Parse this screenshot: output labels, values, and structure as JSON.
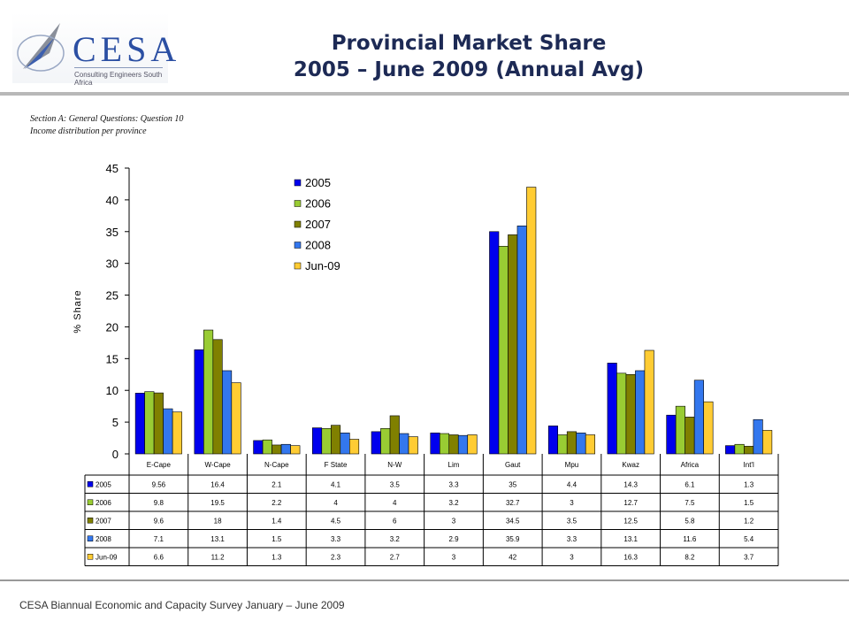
{
  "header": {
    "logo_text": "CESA",
    "logo_subtitle": "Consulting Engineers South Africa",
    "title_line1": "Provincial Market Share",
    "title_line2": "2005 – June 2009 (Annual Avg)"
  },
  "notes": {
    "line1": "Section A: General Questions: Question 10",
    "line2": "Income distribution per province"
  },
  "footer": "CESA Biannual Economic and Capacity Survey January – June 2009",
  "chart_data": {
    "type": "bar",
    "ylabel": "% Share",
    "ylim": [
      0,
      45
    ],
    "yticks": [
      0,
      5,
      10,
      15,
      20,
      25,
      30,
      35,
      40,
      45
    ],
    "legend_position": "top-center",
    "categories": [
      "E-Cape",
      "W-Cape",
      "N-Cape",
      "F State",
      "N-W",
      "Lim",
      "Gaut",
      "Mpu",
      "Kwaz",
      "Africa",
      "Int'l"
    ],
    "series": [
      {
        "name": "2005",
        "color": "#0000ee",
        "values": [
          9.56,
          16.4,
          2.1,
          4.1,
          3.5,
          3.3,
          35,
          4.4,
          14.3,
          6.1,
          1.3
        ]
      },
      {
        "name": "2006",
        "color": "#99cc33",
        "values": [
          9.8,
          19.5,
          2.2,
          4,
          4,
          3.2,
          32.7,
          3,
          12.7,
          7.5,
          1.5
        ]
      },
      {
        "name": "2007",
        "color": "#808000",
        "values": [
          9.6,
          18,
          1.4,
          4.5,
          6,
          3,
          34.5,
          3.5,
          12.5,
          5.8,
          1.2
        ]
      },
      {
        "name": "2008",
        "color": "#3377ee",
        "values": [
          7.1,
          13.1,
          1.5,
          3.3,
          3.2,
          2.9,
          35.9,
          3.3,
          13.1,
          11.6,
          5.4
        ]
      },
      {
        "name": "Jun-09",
        "color": "#ffcc33",
        "values": [
          6.6,
          11.2,
          1.3,
          2.3,
          2.7,
          3,
          42,
          3,
          16.3,
          8.2,
          3.7
        ]
      }
    ],
    "table_values": [
      [
        "9.56",
        "16.4",
        "2.1",
        "4.1",
        "3.5",
        "3.3",
        "35",
        "4.4",
        "14.3",
        "6.1",
        "1.3"
      ],
      [
        "9.8",
        "19.5",
        "2.2",
        "4",
        "4",
        "3.2",
        "32.7",
        "3",
        "12.7",
        "7.5",
        "1.5"
      ],
      [
        "9.6",
        "18",
        "1.4",
        "4.5",
        "6",
        "3",
        "34.5",
        "3.5",
        "12.5",
        "5.8",
        "1.2"
      ],
      [
        "7.1",
        "13.1",
        "1.5",
        "3.3",
        "3.2",
        "2.9",
        "35.9",
        "3.3",
        "13.1",
        "11.6",
        "5.4"
      ],
      [
        "6.6",
        "11.2",
        "1.3",
        "2.3",
        "2.7",
        "3",
        "42",
        "3",
        "16.3",
        "8.2",
        "3.7"
      ]
    ]
  }
}
